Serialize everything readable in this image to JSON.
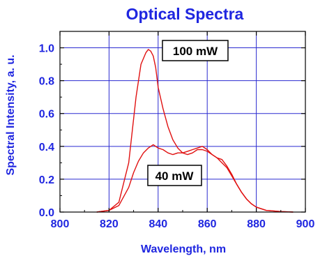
{
  "chart_data": {
    "type": "line",
    "title": "Optical Spectra",
    "xlabel": "Wavelength, nm",
    "ylabel": "Spectral Intensity, a. u.",
    "xlim": [
      800,
      900
    ],
    "ylim": [
      0,
      1.1
    ],
    "xticks": [
      800,
      820,
      840,
      860,
      880,
      900
    ],
    "xtick_labels": [
      "800",
      "820",
      "840",
      "860",
      "880",
      "900"
    ],
    "yticks": [
      0,
      0.2,
      0.4,
      0.6,
      0.8,
      1.0
    ],
    "ytick_labels": [
      "0.0",
      "0.2",
      "0.4",
      "0.6",
      "0.8",
      "1.0"
    ],
    "grid": true,
    "colors": {
      "text": "#1f26e0",
      "grid": "#2a2ad0",
      "line": "#e01010",
      "frame": "#000000"
    },
    "series": [
      {
        "x": [
          815,
          820,
          824,
          828,
          831,
          833,
          835,
          836,
          837,
          838,
          839,
          840,
          842,
          844,
          846,
          848,
          850,
          852,
          854,
          856,
          858,
          860,
          862,
          864,
          866,
          868,
          870,
          872,
          874,
          876,
          878,
          880,
          884,
          890,
          895
        ],
        "y": [
          0.0,
          0.01,
          0.06,
          0.3,
          0.7,
          0.9,
          0.97,
          0.99,
          0.98,
          0.95,
          0.88,
          0.76,
          0.63,
          0.52,
          0.44,
          0.39,
          0.36,
          0.37,
          0.38,
          0.39,
          0.4,
          0.38,
          0.35,
          0.33,
          0.3,
          0.27,
          0.22,
          0.17,
          0.12,
          0.08,
          0.05,
          0.03,
          0.01,
          0.003,
          0.0
        ]
      },
      {
        "x": [
          815,
          820,
          824,
          828,
          830,
          832,
          834,
          836,
          838,
          840,
          842,
          844,
          846,
          848,
          850,
          852,
          854,
          856,
          858,
          860,
          862,
          864,
          866,
          868,
          870,
          872,
          874,
          876,
          878,
          880,
          884,
          890,
          895
        ],
        "y": [
          0.0,
          0.01,
          0.04,
          0.15,
          0.24,
          0.31,
          0.36,
          0.39,
          0.41,
          0.39,
          0.38,
          0.36,
          0.35,
          0.36,
          0.36,
          0.35,
          0.36,
          0.38,
          0.38,
          0.37,
          0.35,
          0.33,
          0.32,
          0.28,
          0.23,
          0.17,
          0.12,
          0.08,
          0.05,
          0.03,
          0.01,
          0.003,
          0.0
        ]
      }
    ],
    "annotations": [
      "100 mW",
      "40 mW"
    ]
  }
}
